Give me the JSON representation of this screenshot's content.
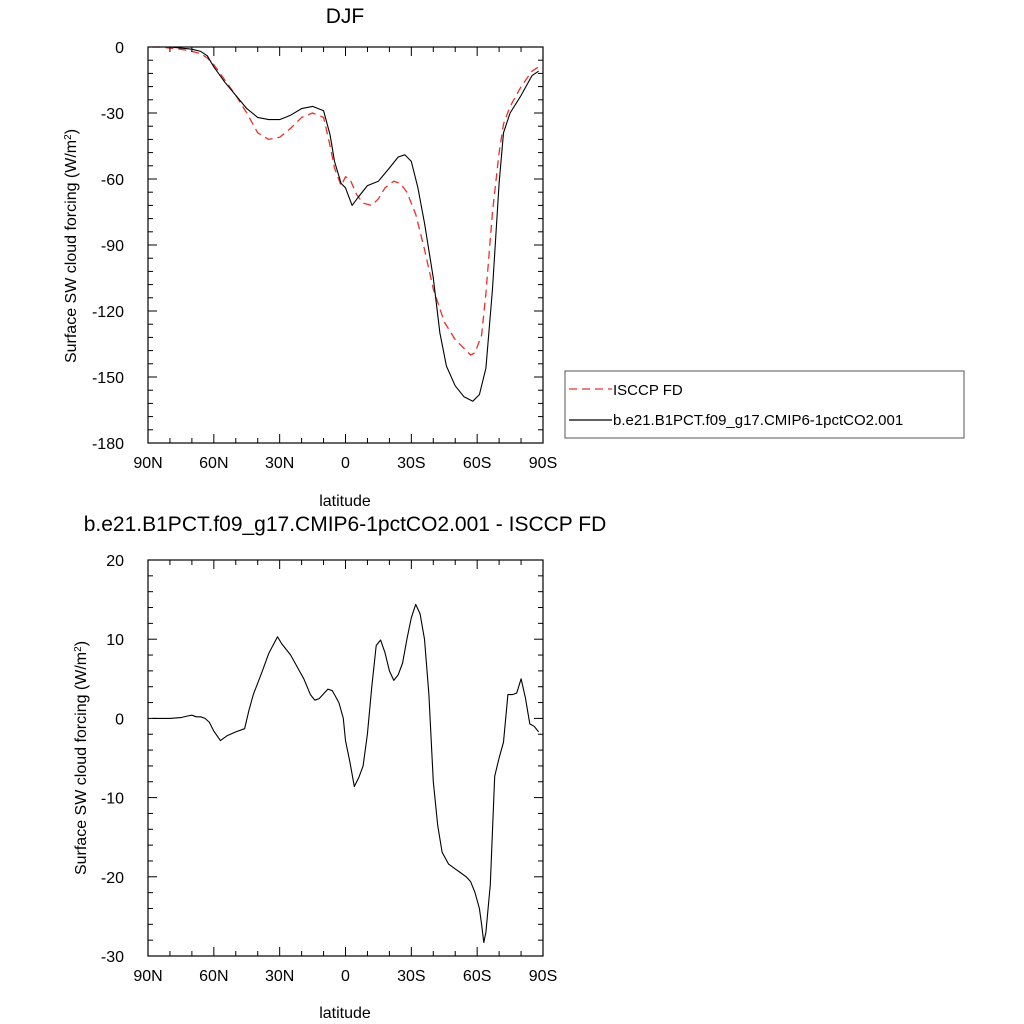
{
  "chart_data": [
    {
      "type": "line",
      "title": "DJF",
      "xlabel": "latitude",
      "ylabel": "Surface SW cloud forcing (W/m",
      "ylabel_sup": "2",
      "ylabel_close": ")",
      "xlim": [
        90,
        -90
      ],
      "ylim": [
        -180,
        0
      ],
      "x_ticks": [
        90,
        60,
        30,
        0,
        -30,
        -60,
        -90
      ],
      "x_tick_labels": [
        "90N",
        "60N",
        "30N",
        "0",
        "30S",
        "60S",
        "90S"
      ],
      "y_ticks": [
        0,
        -30,
        -60,
        -90,
        -120,
        -150,
        -180
      ],
      "y_tick_labels": [
        "0",
        "-30",
        "-60",
        "-90",
        "-120",
        "-150",
        "-180"
      ],
      "grid": false,
      "legend_position": "right",
      "series": [
        {
          "name": "ISCCP FD",
          "color": "#e8312a",
          "dash": "dashed",
          "x": [
            88,
            85,
            80,
            75,
            70,
            66,
            63,
            60,
            55,
            50,
            45,
            40,
            35,
            30,
            25,
            20,
            15,
            10,
            7,
            5,
            2,
            0,
            -2,
            -5,
            -8,
            -12,
            -15,
            -18,
            -22,
            -25,
            -28,
            -32,
            -36,
            -40,
            -45,
            -50,
            -55,
            -57,
            -59,
            -62,
            -64,
            -67,
            -70,
            -72,
            -75,
            -80,
            -85,
            -88
          ],
          "y": [
            0,
            0,
            -0.5,
            -1,
            -2,
            -3,
            -5,
            -8,
            -15,
            -22,
            -30,
            -39,
            -42,
            -41,
            -37,
            -32,
            -30,
            -32,
            -45,
            -55,
            -63,
            -59,
            -60,
            -67,
            -71,
            -72,
            -69,
            -64,
            -61,
            -62,
            -66,
            -76,
            -92,
            -110,
            -125,
            -133,
            -138,
            -140,
            -139,
            -131,
            -112,
            -75,
            -48,
            -35,
            -27,
            -18,
            -11,
            -9
          ]
        },
        {
          "name": "b.e21.B1PCT.f09_g17.CMIP6-1pctCO2.001",
          "color": "#000000",
          "dash": "solid",
          "x": [
            88,
            85,
            80,
            75,
            70,
            66,
            63,
            60,
            55,
            50,
            45,
            40,
            35,
            30,
            25,
            20,
            15,
            10,
            7,
            5,
            2,
            0,
            -3,
            -6,
            -10,
            -15,
            -20,
            -24,
            -27,
            -30,
            -33,
            -36,
            -40,
            -43,
            -46,
            -50,
            -54,
            -58,
            -61,
            -64,
            -67,
            -70,
            -72,
            -75,
            -80,
            -85,
            -88
          ],
          "y": [
            0,
            0,
            0,
            -0.5,
            -1,
            -2,
            -4,
            -9,
            -16,
            -22,
            -28,
            -32,
            -33,
            -33,
            -31,
            -28,
            -27,
            -29,
            -40,
            -52,
            -62,
            -64,
            -72,
            -68,
            -63,
            -61,
            -55,
            -50,
            -49,
            -52,
            -64,
            -80,
            -105,
            -130,
            -145,
            -154,
            -159,
            -161,
            -158,
            -146,
            -110,
            -62,
            -39,
            -30,
            -22,
            -13,
            -11
          ]
        }
      ]
    },
    {
      "type": "line",
      "title": "b.e21.B1PCT.f09_g17.CMIP6-1pctCO2.001 - ISCCP FD",
      "xlabel": "latitude",
      "ylabel": "Surface SW cloud forcing (W/m",
      "ylabel_sup": "2",
      "ylabel_close": ")",
      "xlim": [
        90,
        -90
      ],
      "ylim": [
        -30,
        20
      ],
      "x_ticks": [
        90,
        60,
        30,
        0,
        -30,
        -60,
        -90
      ],
      "x_tick_labels": [
        "90N",
        "60N",
        "30N",
        "0",
        "30S",
        "60S",
        "90S"
      ],
      "y_ticks": [
        20,
        10,
        0,
        -10,
        -20,
        -30
      ],
      "y_tick_labels": [
        "20",
        "10",
        "0",
        "-10",
        "-20",
        "-30"
      ],
      "grid": false,
      "series": [
        {
          "color": "#000000",
          "dash": "solid",
          "x": [
            88,
            85,
            80,
            75,
            72,
            70,
            68,
            66,
            64,
            62,
            60,
            57,
            54,
            50,
            46,
            44,
            42,
            38,
            35,
            31,
            29,
            25,
            21,
            19,
            16,
            14,
            12,
            10,
            8,
            6,
            5,
            3,
            1,
            0,
            -2,
            -4,
            -6,
            -8,
            -10,
            -12,
            -14,
            -16,
            -18,
            -20,
            -22,
            -24,
            -26,
            -28,
            -30,
            -32,
            -34,
            -36,
            -38,
            -40,
            -42,
            -44,
            -47,
            -50,
            -52,
            -55,
            -57,
            -59,
            -61,
            -62,
            -63,
            -64,
            -66,
            -68,
            -70,
            -72,
            -74,
            -76,
            -78,
            -80,
            -82,
            -84,
            -86,
            -88
          ],
          "y": [
            0,
            0,
            0,
            0.1,
            0.3,
            0.4,
            0.2,
            0.2,
            0,
            -0.5,
            -1.6,
            -2.8,
            -2.2,
            -1.7,
            -1.3,
            1,
            3,
            5.9,
            8.2,
            10.3,
            9.4,
            8,
            6,
            5,
            3,
            2.3,
            2.5,
            3.1,
            3.7,
            3.5,
            3,
            2,
            0,
            -2.8,
            -5.5,
            -8.6,
            -7.5,
            -6,
            -2,
            4,
            9.2,
            9.9,
            8.3,
            6,
            4.8,
            5.5,
            7,
            10,
            12.7,
            14.4,
            13.2,
            10,
            3,
            -8,
            -13.5,
            -16.9,
            -18.4,
            -19,
            -19.4,
            -20,
            -20.6,
            -22,
            -24,
            -26,
            -28.3,
            -27,
            -21,
            -7.3,
            -5,
            -3,
            3,
            3,
            3.2,
            5,
            2.6,
            -0.7,
            -1,
            -1.7
          ]
        }
      ]
    }
  ]
}
